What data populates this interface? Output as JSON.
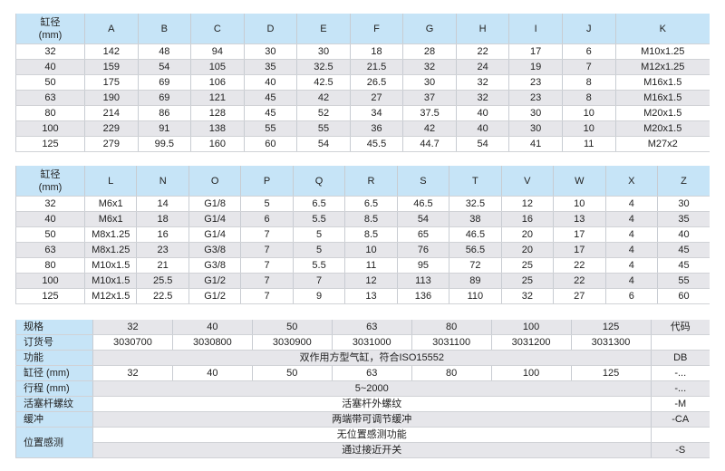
{
  "table1": {
    "headers": [
      "缸径\n(mm)",
      "A",
      "B",
      "C",
      "D",
      "E",
      "F",
      "G",
      "H",
      "I",
      "J",
      "K"
    ],
    "rows": [
      [
        "32",
        "142",
        "48",
        "94",
        "30",
        "30",
        "18",
        "28",
        "22",
        "17",
        "6",
        "M10x1.25"
      ],
      [
        "40",
        "159",
        "54",
        "105",
        "35",
        "32.5",
        "21.5",
        "32",
        "24",
        "19",
        "7",
        "M12x1.25"
      ],
      [
        "50",
        "175",
        "69",
        "106",
        "40",
        "42.5",
        "26.5",
        "30",
        "32",
        "23",
        "8",
        "M16x1.5"
      ],
      [
        "63",
        "190",
        "69",
        "121",
        "45",
        "42",
        "27",
        "37",
        "32",
        "23",
        "8",
        "M16x1.5"
      ],
      [
        "80",
        "214",
        "86",
        "128",
        "45",
        "52",
        "34",
        "37.5",
        "40",
        "30",
        "10",
        "M20x1.5"
      ],
      [
        "100",
        "229",
        "91",
        "138",
        "55",
        "55",
        "36",
        "42",
        "40",
        "30",
        "10",
        "M20x1.5"
      ],
      [
        "125",
        "279",
        "99.5",
        "160",
        "60",
        "54",
        "45.5",
        "44.7",
        "54",
        "41",
        "11",
        "M27x2"
      ]
    ]
  },
  "table2": {
    "headers": [
      "缸径\n(mm)",
      "L",
      "N",
      "O",
      "P",
      "Q",
      "R",
      "S",
      "T",
      "V",
      "W",
      "X",
      "Z"
    ],
    "rows": [
      [
        "32",
        "M6x1",
        "14",
        "G1/8",
        "5",
        "6.5",
        "6.5",
        "46.5",
        "32.5",
        "12",
        "10",
        "4",
        "30"
      ],
      [
        "40",
        "M6x1",
        "18",
        "G1/4",
        "6",
        "5.5",
        "8.5",
        "54",
        "38",
        "16",
        "13",
        "4",
        "35"
      ],
      [
        "50",
        "M8x1.25",
        "16",
        "G1/4",
        "7",
        "5",
        "8.5",
        "65",
        "46.5",
        "20",
        "17",
        "4",
        "40"
      ],
      [
        "63",
        "M8x1.25",
        "23",
        "G3/8",
        "7",
        "5",
        "10",
        "76",
        "56.5",
        "20",
        "17",
        "4",
        "45"
      ],
      [
        "80",
        "M10x1.5",
        "21",
        "G3/8",
        "7",
        "5.5",
        "11",
        "95",
        "72",
        "25",
        "22",
        "4",
        "45"
      ],
      [
        "100",
        "M10x1.5",
        "25.5",
        "G1/2",
        "7",
        "7",
        "12",
        "113",
        "89",
        "25",
        "22",
        "4",
        "55"
      ],
      [
        "125",
        "M12x1.5",
        "22.5",
        "G1/2",
        "7",
        "9",
        "13",
        "136",
        "110",
        "32",
        "27",
        "6",
        "60"
      ]
    ]
  },
  "table3": {
    "spec": {
      "label": "规格",
      "values": [
        "32",
        "40",
        "50",
        "63",
        "80",
        "100",
        "125"
      ],
      "code": "代码"
    },
    "order": {
      "label": "订货号",
      "values": [
        "3030700",
        "3030800",
        "3030900",
        "3031000",
        "3031100",
        "3031200",
        "3031300"
      ],
      "code": ""
    },
    "function": {
      "label": "功能",
      "value": "双作用方型气缸，符合ISO15552",
      "code": "DB"
    },
    "bore": {
      "label": "缸径 (mm)",
      "values": [
        "32",
        "40",
        "50",
        "63",
        "80",
        "100",
        "125"
      ],
      "code": "-..."
    },
    "stroke": {
      "label": "行程 (mm)",
      "value": "5~2000",
      "code": "-..."
    },
    "rod": {
      "label": "活塞杆螺纹",
      "value": "活塞杆外螺纹",
      "code": "-M"
    },
    "cushion": {
      "label": "缓冲",
      "value": "两端带可调节缓冲",
      "code": "-CA"
    },
    "sensing": {
      "label": "位置感测",
      "options": [
        {
          "value": "无位置感测功能",
          "code": ""
        },
        {
          "value": "通过接近开关",
          "code": "-S"
        }
      ]
    }
  }
}
